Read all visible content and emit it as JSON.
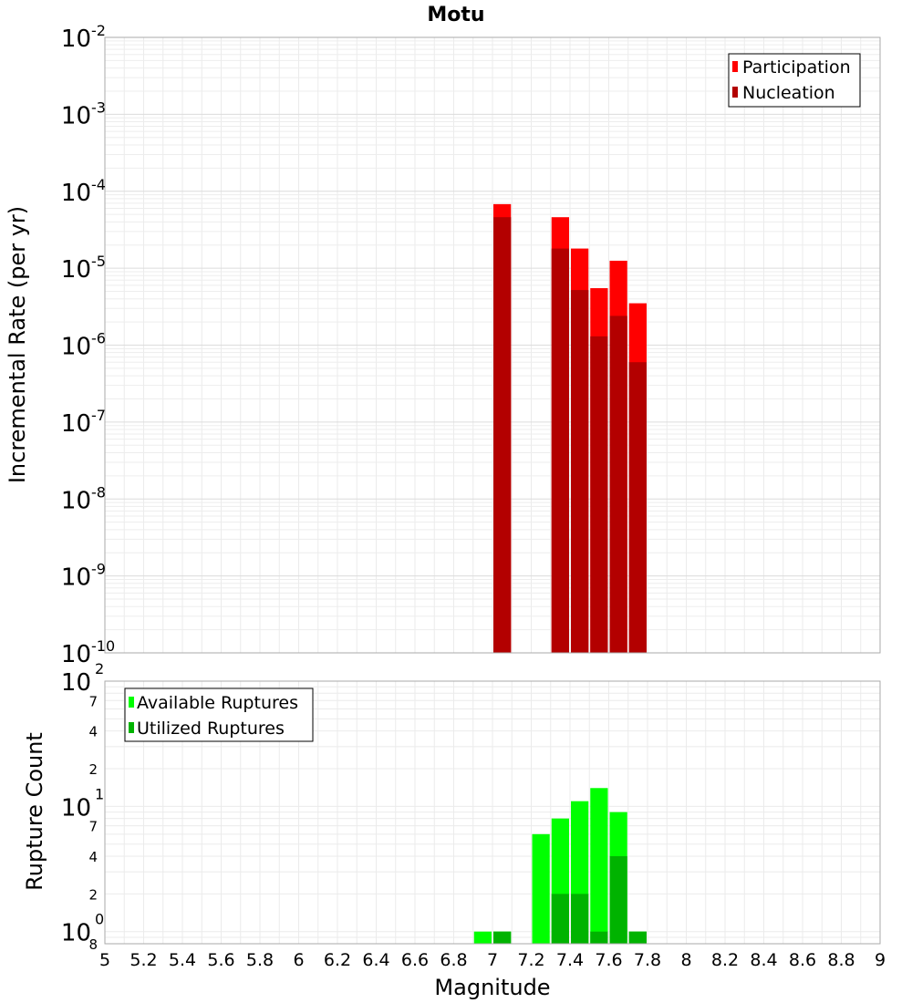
{
  "chart_data": [
    {
      "type": "bar",
      "name": "rates",
      "title": "Motu",
      "xlabel": "Magnitude",
      "ylabel": "Incremental Rate (per yr)",
      "yscale": "log",
      "xlim": [
        5,
        9
      ],
      "ylim": [
        1e-10,
        0.01
      ],
      "ytick_exponents": [
        -10,
        -9,
        -8,
        -7,
        -6,
        -5,
        -4,
        -3,
        -2
      ],
      "ytick_base": "10",
      "legend_position": "top-right",
      "bin_width": 0.1,
      "x": [
        7.05,
        7.35,
        7.45,
        7.55,
        7.65,
        7.75
      ],
      "series": [
        {
          "name": "Participation",
          "color": "#ff0000",
          "values": [
            6.8e-05,
            4.6e-05,
            1.8e-05,
            5.5e-06,
            1.25e-05,
            3.5e-06
          ]
        },
        {
          "name": "Nucleation",
          "color": "#b30000",
          "values": [
            4.6e-05,
            1.8e-05,
            5.2e-06,
            1.3e-06,
            2.4e-06,
            6e-07
          ]
        }
      ]
    },
    {
      "type": "bar",
      "name": "counts",
      "xlabel": "Magnitude",
      "ylabel": "Rupture Count",
      "yscale": "log",
      "xlim": [
        5,
        9
      ],
      "ylim": [
        0.8,
        100
      ],
      "major_ticks": [
        {
          "value": 1,
          "exp": "0"
        },
        {
          "value": 10,
          "exp": "1"
        },
        {
          "value": 100,
          "exp": "2"
        }
      ],
      "minor_ticks": [
        {
          "value": 0.8,
          "label": "8"
        },
        {
          "value": 2,
          "label": "2"
        },
        {
          "value": 4,
          "label": "4"
        },
        {
          "value": 7,
          "label": "7"
        },
        {
          "value": 20,
          "label": "2"
        },
        {
          "value": 40,
          "label": "4"
        },
        {
          "value": 70,
          "label": "7"
        }
      ],
      "ytick_base": "10",
      "legend_position": "top-left",
      "bin_width": 0.1,
      "x": [
        6.95,
        7.05,
        7.25,
        7.35,
        7.45,
        7.55,
        7.65,
        7.75
      ],
      "series": [
        {
          "name": "Available Ruptures",
          "color": "#00ff00",
          "values": [
            1,
            1,
            6,
            8,
            11,
            14,
            9,
            1
          ]
        },
        {
          "name": "Utilized Ruptures",
          "color": "#00b300",
          "values": [
            0,
            1,
            0,
            2,
            2,
            1,
            4,
            1
          ]
        }
      ]
    }
  ],
  "x_ticks": [
    "5",
    "5.2",
    "5.4",
    "5.6",
    "5.8",
    "6",
    "6.2",
    "6.4",
    "6.6",
    "6.8",
    "7",
    "7.2",
    "7.4",
    "7.6",
    "7.8",
    "8",
    "8.2",
    "8.4",
    "8.6",
    "8.8",
    "9"
  ]
}
